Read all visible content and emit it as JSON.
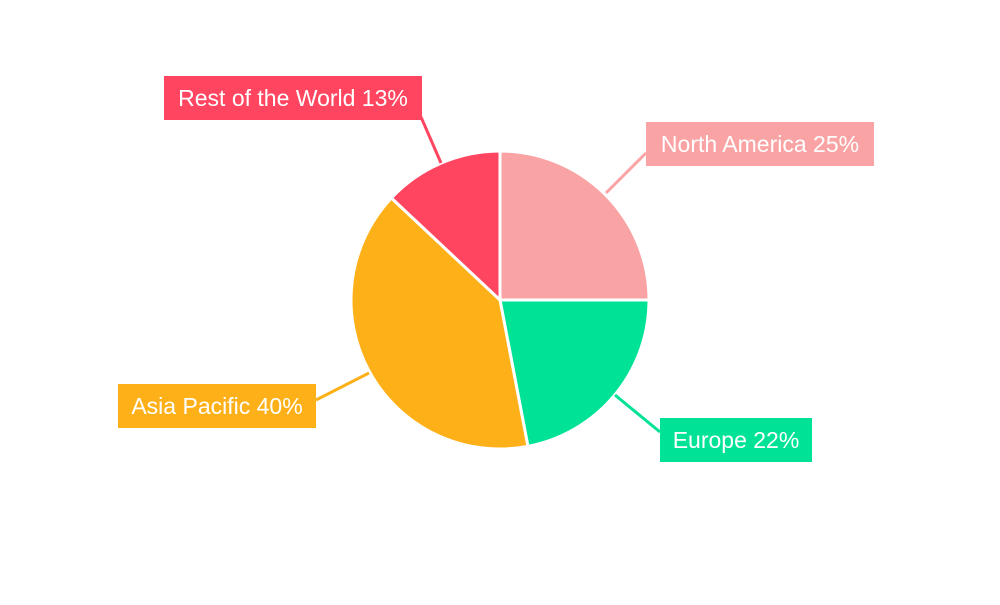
{
  "chart_data": {
    "type": "pie",
    "title": "",
    "categories": [
      "North America",
      "Europe",
      "Asia Pacific",
      "Rest of the World"
    ],
    "values": [
      25,
      22,
      40,
      13
    ],
    "labels": [
      "North America 25%",
      "Europe 22%",
      "Asia Pacific 40%",
      "Rest of the World 13%"
    ],
    "colors": [
      "#F9A3A4",
      "#00E396",
      "#FEB019",
      "#FF4560"
    ],
    "start_angle": "top",
    "direction": "clockwise",
    "legend": "none"
  }
}
